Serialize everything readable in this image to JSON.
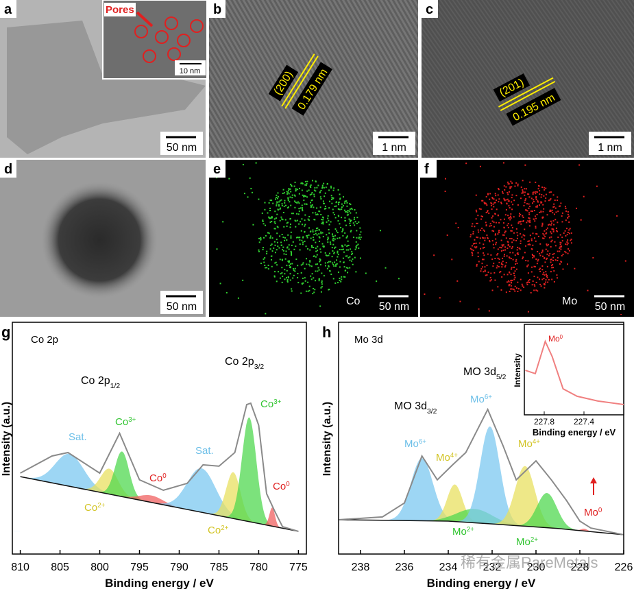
{
  "images": [
    {
      "label": "a",
      "scale_bar": "50 nm",
      "inset": {
        "annotation": "Pores",
        "scale_bar": "10 nm"
      }
    },
    {
      "label": "b",
      "scale_bar": "1 nm",
      "plane": "(200)",
      "spacing": "0.179 nm"
    },
    {
      "label": "c",
      "scale_bar": "1 nm",
      "plane": "(201)",
      "spacing": "0.195 nm"
    },
    {
      "label": "d",
      "scale_bar": "50 nm"
    },
    {
      "label": "e",
      "scale_bar": "50 nm",
      "element": "Co"
    },
    {
      "label": "f",
      "scale_bar": "50 nm",
      "element": "Mo"
    }
  ],
  "chart_data": [
    {
      "type": "line",
      "panel": "g",
      "title": "Co 2p",
      "xlabel": "Binding energy / eV",
      "ylabel": "Intensity (a.u.)",
      "xlim": [
        811,
        774
      ],
      "ylim": [
        0,
        100
      ],
      "xticks": [
        810,
        805,
        800,
        795,
        790,
        785,
        780,
        775
      ],
      "annotations": [
        {
          "text": "Co 2p",
          "sub": "1/2"
        },
        {
          "text": "Co 2p",
          "sub": "3/2"
        }
      ],
      "envelope": {
        "color": "#8a8a8a",
        "x": [
          810,
          806,
          804,
          800,
          797.5,
          795,
          792,
          789,
          787,
          785,
          783,
          781.5,
          781,
          780,
          779,
          778,
          777,
          775
        ],
        "values": [
          34.9,
          42.3,
          43.8,
          34.9,
          52.1,
          32.0,
          27.5,
          30.5,
          38.5,
          37.9,
          43.8,
          64.5,
          65.1,
          55.6,
          26.0,
          18.6,
          11.8,
          9.8
        ]
      },
      "background": {
        "color": "#111111",
        "x": [
          810,
          775
        ],
        "values": [
          33.4,
          9.8
        ]
      },
      "peaks": [
        {
          "label": {
            "text": "Sat."
          },
          "color": "#7cc8f0",
          "text_color": "#6cbfe8",
          "center": 803.8,
          "height": 14,
          "width": 1.8
        },
        {
          "label": {
            "text": "Co",
            "sup": "2+"
          },
          "color": "#e8e060",
          "text_color": "#d2c424",
          "center": 798.8,
          "height": 11,
          "width": 1.1
        },
        {
          "label": {
            "text": "Co",
            "sup": "3+"
          },
          "color": "#50d850",
          "text_color": "#2fc42f",
          "center": 797.2,
          "height": 19.5,
          "width": 0.9
        },
        {
          "label": {
            "text": "Co",
            "sup": "0"
          },
          "color": "#f06060",
          "text_color": "#e02020",
          "center": 793.5,
          "height": 3,
          "width": 1.5
        },
        {
          "label": {
            "text": "Sat."
          },
          "color": "#7cc8f0",
          "text_color": "#6cbfe8",
          "center": 787.2,
          "height": 19,
          "width": 1.8
        },
        {
          "label": {
            "text": "Co",
            "sup": "2+"
          },
          "color": "#e8e060",
          "text_color": "#d2c424",
          "center": 783.2,
          "height": 20,
          "width": 0.9
        },
        {
          "label": {
            "text": "Co",
            "sup": "3+"
          },
          "color": "#50d850",
          "text_color": "#2fc42f",
          "center": 781.2,
          "height": 45,
          "width": 0.9
        },
        {
          "label": {
            "text": "Co",
            "sup": "0"
          },
          "color": "#f06060",
          "text_color": "#e02020",
          "center": 778.3,
          "height": 8,
          "width": 0.35
        }
      ]
    },
    {
      "type": "line",
      "panel": "h",
      "title": "Mo 3d",
      "xlabel": "Binding energy / eV",
      "ylabel": "Intensity (a.u.)",
      "xlim": [
        239,
        226
      ],
      "ylim": [
        0,
        100
      ],
      "xticks": [
        238,
        236,
        234,
        232,
        230,
        228,
        226
      ],
      "annotations": [
        {
          "text": "MO 3d",
          "sub": "3/2"
        },
        {
          "text": "MO 3d",
          "sub": "5/2"
        }
      ],
      "envelope": {
        "color": "#8a8a8a",
        "x": [
          239,
          237,
          236,
          235.2,
          234.5,
          233.8,
          233.2,
          232.2,
          231.5,
          230.9,
          230,
          229.3,
          228.6,
          228,
          227.5,
          226
        ],
        "values": [
          14.8,
          16,
          22,
          42.3,
          32,
          38.5,
          43.8,
          62.4,
          46.7,
          32,
          40.2,
          32,
          23,
          14.2,
          11.2,
          8.3
        ]
      },
      "background": {
        "color": "#111111",
        "x": [
          239,
          234,
          232,
          229,
          226
        ],
        "values": [
          14.8,
          14.2,
          13,
          11,
          8.3
        ]
      },
      "peaks": [
        {
          "label": {
            "text": "Mo",
            "sup": "6+"
          },
          "color": "#7cc8f0",
          "text_color": "#6cbfe8",
          "center": 235.2,
          "height": 27,
          "width": 0.5
        },
        {
          "label": {
            "text": "Mo",
            "sup": "4+"
          },
          "color": "#e8e060",
          "text_color": "#d2c424",
          "center": 233.7,
          "height": 16,
          "width": 0.35
        },
        {
          "label": {
            "text": "Mo",
            "sup": "2+"
          },
          "color": "#50d850",
          "text_color": "#2fc42f",
          "center": 232.8,
          "height": 6,
          "width": 0.8
        },
        {
          "label": {
            "text": "Mo",
            "sup": "6+"
          },
          "color": "#7cc8f0",
          "text_color": "#6cbfe8",
          "center": 232.1,
          "height": 42,
          "width": 0.45
        },
        {
          "label": {
            "text": "Mo",
            "sup": "4+"
          },
          "color": "#e8e060",
          "text_color": "#d2c424",
          "center": 230.5,
          "height": 26,
          "width": 0.45
        },
        {
          "label": {
            "text": "Mo",
            "sup": "2+"
          },
          "color": "#50d850",
          "text_color": "#2fc42f",
          "center": 229.5,
          "height": 15,
          "width": 0.45
        },
        {
          "label": {
            "text": "Mo",
            "sup": "0"
          },
          "color": "#f06060",
          "text_color": "#e02020",
          "center": 227.8,
          "height": 1,
          "width": 0.15
        }
      ],
      "inset": {
        "xlabel": "Binding energy / eV",
        "ylabel": "Intensity",
        "xlim": [
          228.0,
          227.0
        ],
        "ylim": [
          0,
          100
        ],
        "xticks": [
          227.8,
          227.4
        ],
        "color": "#f08080",
        "label": {
          "text": "Mo",
          "sup": "0"
        },
        "x": [
          227.99,
          227.89,
          227.79,
          227.72,
          227.61,
          227.47,
          227.26,
          227.0
        ],
        "values": [
          49.2,
          45.5,
          81.1,
          64.4,
          28.8,
          20.5,
          15.2,
          11.4
        ]
      }
    }
  ],
  "watermark": "稀有金属RareMetals"
}
